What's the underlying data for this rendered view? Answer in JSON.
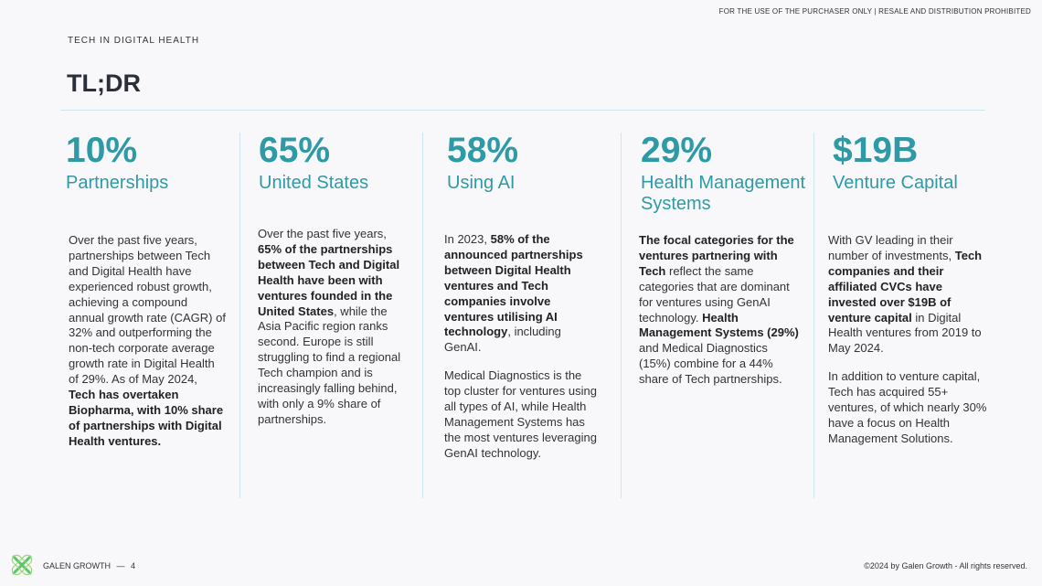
{
  "header": {
    "notice": "FOR THE USE OF THE PURCHASER ONLY | RESALE AND DISTRIBUTION PROHIBITED",
    "section": "TECH IN DIGITAL HEALTH",
    "title": "TL;DR"
  },
  "colors": {
    "accent": "#2d9aa6",
    "logo_green": "#5cc46a"
  },
  "columns": [
    {
      "stat": "10%",
      "label": "Partnerships",
      "paragraphs": [
        [
          {
            "t": "Over the past five years, partnerships between Tech and Digital Health have experienced robust growth, achieving a compound annual growth rate (CAGR) of 32% and outperforming the non-tech corporate average growth rate in Digital Health of 29%. As of May 2024, ",
            "b": false
          },
          {
            "t": "Tech has overtaken Biopharma, with 10% share of partnerships with Digital Health ventures.",
            "b": true
          }
        ]
      ]
    },
    {
      "stat": "65%",
      "label": "United States",
      "paragraphs": [
        [
          {
            "t": "Over the past five years, ",
            "b": false
          },
          {
            "t": "65% of the partnerships between Tech and Digital Health have been with ventures founded in the United States",
            "b": true
          },
          {
            "t": ", while the Asia Pacific region ranks second. Europe is still struggling to find a regional Tech champion and is increasingly falling behind, with only a 9% share of partnerships.",
            "b": false
          }
        ]
      ]
    },
    {
      "stat": "58%",
      "label": "Using AI",
      "paragraphs": [
        [
          {
            "t": "In 2023, ",
            "b": false
          },
          {
            "t": "58% of the announced partnerships between Digital Health ventures and Tech companies involve ventures utilising AI technology",
            "b": true
          },
          {
            "t": ", including GenAI.",
            "b": false
          }
        ],
        [
          {
            "t": "Medical Diagnostics is the top cluster for ventures using all types of AI, while Health Management Systems has the most ventures leveraging GenAI technology.",
            "b": false
          }
        ]
      ]
    },
    {
      "stat": "29%",
      "label": "Health Management Systems",
      "paragraphs": [
        [
          {
            "t": "The focal categories for the ventures partnering with Tech",
            "b": true
          },
          {
            "t": " reflect the same categories that are dominant for ventures using GenAI technology. ",
            "b": false
          },
          {
            "t": "Health Management Systems (29%)",
            "b": true
          },
          {
            "t": " and Medical Diagnostics (15%) combine for a 44% share of Tech partnerships.",
            "b": false
          }
        ]
      ]
    },
    {
      "stat": "$19B",
      "label": "Venture Capital",
      "paragraphs": [
        [
          {
            "t": "With GV leading in their number of investments, ",
            "b": false
          },
          {
            "t": "Tech companies and their affiliated CVCs have invested over $19B of venture capital",
            "b": true
          },
          {
            "t": " in Digital Health ventures from 2019 to May 2024.",
            "b": false
          }
        ],
        [
          {
            "t": "In addition to venture capital, Tech has acquired 55+ ventures, of which nearly 30% have a focus on Health Management Solutions.",
            "b": false
          }
        ]
      ]
    }
  ],
  "footer": {
    "brand": "GALEN GROWTH",
    "separator": "—",
    "page": "4",
    "copyright": "©2024 by Galen Growth  - All rights reserved."
  }
}
